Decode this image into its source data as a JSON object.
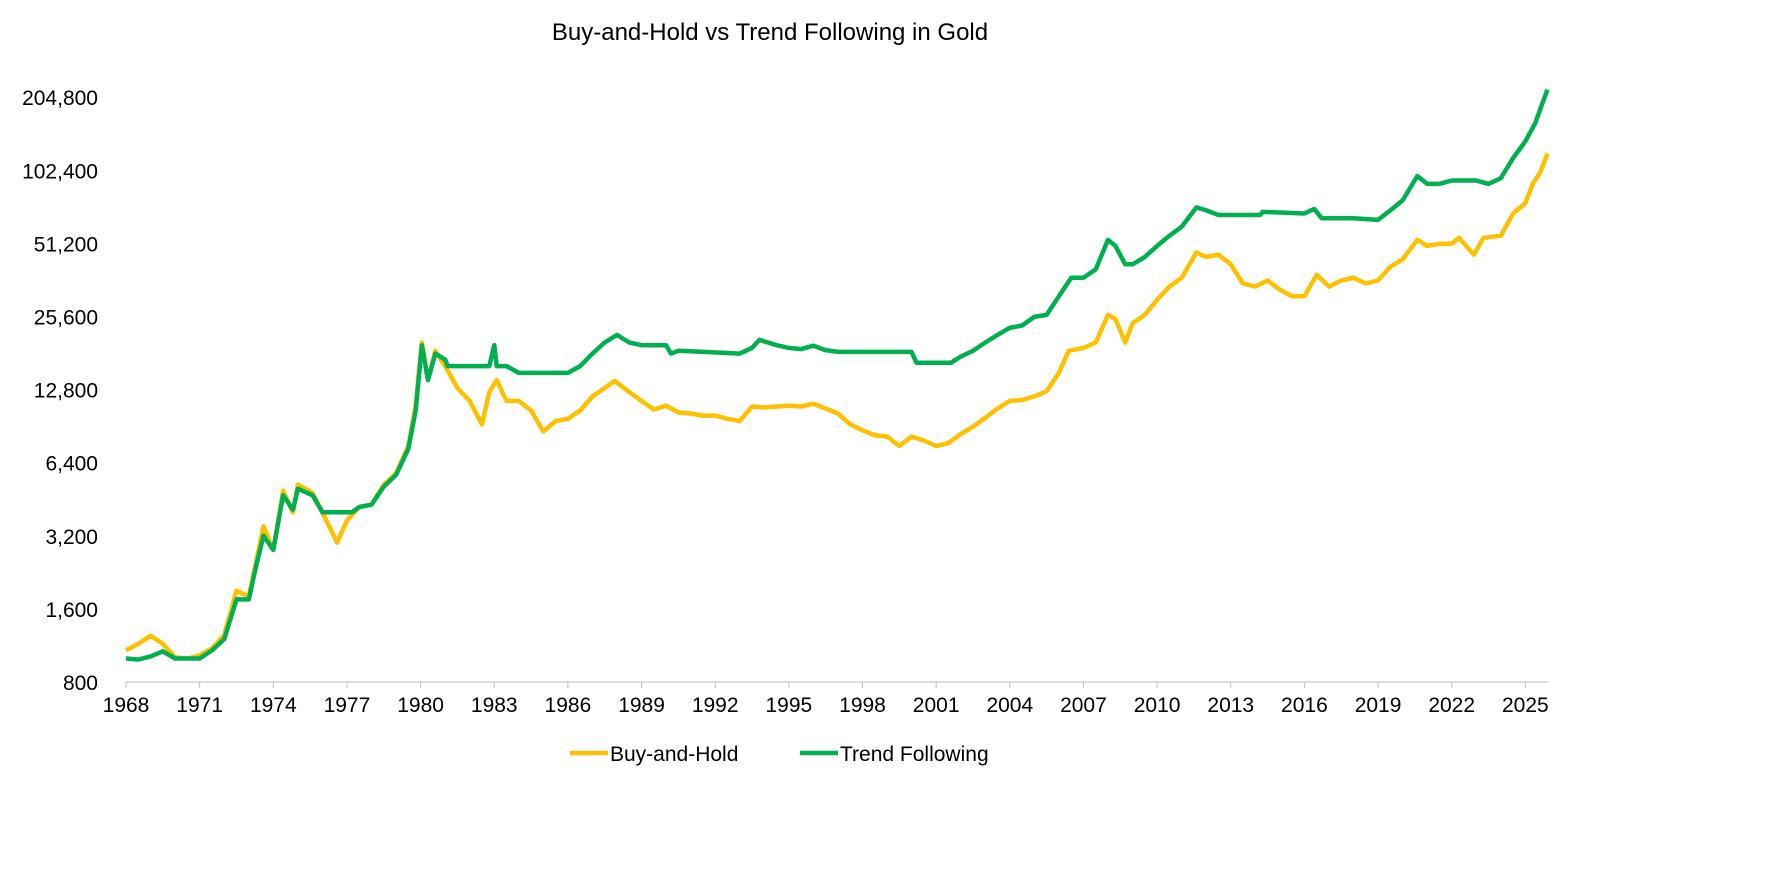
{
  "chart_data": {
    "type": "line",
    "title": "Buy-and-Hold vs Trend Following in Gold",
    "xlabel": "",
    "ylabel": "",
    "y_scale": "log2",
    "ylim": [
      800,
      204800
    ],
    "xlim": [
      1968,
      2025.9
    ],
    "y_ticks": [
      800,
      1600,
      3200,
      6400,
      12800,
      25600,
      51200,
      102400,
      204800
    ],
    "y_tick_labels": [
      "800",
      "1,600",
      "3,200",
      "6,400",
      "12,800",
      "25,600",
      "51,200",
      "102,400",
      "204,800"
    ],
    "x_ticks": [
      1968,
      1971,
      1974,
      1977,
      1980,
      1983,
      1986,
      1989,
      1992,
      1995,
      1998,
      2001,
      2004,
      2007,
      2010,
      2013,
      2016,
      2019,
      2022,
      2025
    ],
    "x_tick_labels": [
      "1968",
      "1971",
      "1974",
      "1977",
      "1980",
      "1983",
      "1986",
      "1989",
      "1992",
      "1995",
      "1998",
      "2001",
      "2004",
      "2007",
      "2010",
      "2013",
      "2016",
      "2019",
      "2022",
      "2025"
    ],
    "grid": false,
    "legend_position": "bottom",
    "series": [
      {
        "name": "Buy-and-Hold",
        "color": "#FFC000",
        "points": [
          [
            1968.0,
            1080
          ],
          [
            1968.5,
            1150
          ],
          [
            1969.0,
            1240
          ],
          [
            1969.5,
            1150
          ],
          [
            1970.0,
            1010
          ],
          [
            1970.5,
            1000
          ],
          [
            1971.0,
            1030
          ],
          [
            1971.5,
            1100
          ],
          [
            1972.0,
            1250
          ],
          [
            1972.5,
            1900
          ],
          [
            1973.0,
            1800
          ],
          [
            1973.3,
            2500
          ],
          [
            1973.6,
            3500
          ],
          [
            1974.0,
            2800
          ],
          [
            1974.4,
            4900
          ],
          [
            1974.8,
            4000
          ],
          [
            1975.0,
            5200
          ],
          [
            1975.6,
            4800
          ],
          [
            1976.0,
            4000
          ],
          [
            1976.6,
            3000
          ],
          [
            1977.0,
            3700
          ],
          [
            1977.5,
            4200
          ],
          [
            1978.0,
            4300
          ],
          [
            1978.5,
            5200
          ],
          [
            1979.0,
            5800
          ],
          [
            1979.5,
            7500
          ],
          [
            1979.8,
            11000
          ],
          [
            1980.05,
            20000
          ],
          [
            1980.3,
            14000
          ],
          [
            1980.6,
            18500
          ],
          [
            1981.0,
            16000
          ],
          [
            1981.5,
            13000
          ],
          [
            1982.0,
            11500
          ],
          [
            1982.5,
            9200
          ],
          [
            1982.8,
            12500
          ],
          [
            1983.1,
            14000
          ],
          [
            1983.5,
            11500
          ],
          [
            1984.0,
            11500
          ],
          [
            1984.5,
            10500
          ],
          [
            1985.0,
            8600
          ],
          [
            1985.5,
            9500
          ],
          [
            1986.0,
            9700
          ],
          [
            1986.5,
            10500
          ],
          [
            1987.0,
            12000
          ],
          [
            1987.5,
            13000
          ],
          [
            1987.9,
            13900
          ],
          [
            1988.5,
            12500
          ],
          [
            1989.0,
            11500
          ],
          [
            1989.5,
            10600
          ],
          [
            1990.0,
            11000
          ],
          [
            1990.5,
            10300
          ],
          [
            1991.0,
            10200
          ],
          [
            1991.5,
            10000
          ],
          [
            1992.0,
            10000
          ],
          [
            1992.5,
            9700
          ],
          [
            1993.0,
            9500
          ],
          [
            1993.5,
            10900
          ],
          [
            1994.0,
            10800
          ],
          [
            1994.5,
            10900
          ],
          [
            1995.0,
            11000
          ],
          [
            1995.5,
            10900
          ],
          [
            1996.0,
            11200
          ],
          [
            1996.5,
            10700
          ],
          [
            1997.0,
            10200
          ],
          [
            1997.5,
            9200
          ],
          [
            1998.0,
            8700
          ],
          [
            1998.5,
            8300
          ],
          [
            1999.0,
            8200
          ],
          [
            1999.5,
            7500
          ],
          [
            2000.0,
            8200
          ],
          [
            2000.5,
            7900
          ],
          [
            2001.0,
            7500
          ],
          [
            2001.5,
            7700
          ],
          [
            2002.0,
            8400
          ],
          [
            2002.5,
            9000
          ],
          [
            2003.0,
            9800
          ],
          [
            2003.5,
            10700
          ],
          [
            2004.0,
            11500
          ],
          [
            2004.5,
            11600
          ],
          [
            2005.0,
            12000
          ],
          [
            2005.5,
            12600
          ],
          [
            2006.0,
            15000
          ],
          [
            2006.4,
            18500
          ],
          [
            2007.0,
            19000
          ],
          [
            2007.5,
            20000
          ],
          [
            2008.0,
            26000
          ],
          [
            2008.3,
            25000
          ],
          [
            2008.7,
            20000
          ],
          [
            2009.0,
            24000
          ],
          [
            2009.5,
            26000
          ],
          [
            2010.0,
            30000
          ],
          [
            2010.5,
            34000
          ],
          [
            2011.0,
            37000
          ],
          [
            2011.6,
            47000
          ],
          [
            2012.0,
            45000
          ],
          [
            2012.5,
            46000
          ],
          [
            2013.0,
            42000
          ],
          [
            2013.5,
            35000
          ],
          [
            2014.0,
            34000
          ],
          [
            2014.5,
            36000
          ],
          [
            2015.0,
            33000
          ],
          [
            2015.5,
            31000
          ],
          [
            2016.0,
            31000
          ],
          [
            2016.5,
            38000
          ],
          [
            2017.0,
            34000
          ],
          [
            2017.5,
            36000
          ],
          [
            2018.0,
            37000
          ],
          [
            2018.5,
            35000
          ],
          [
            2019.0,
            36000
          ],
          [
            2019.5,
            41000
          ],
          [
            2020.0,
            44000
          ],
          [
            2020.6,
            53000
          ],
          [
            2021.0,
            50000
          ],
          [
            2021.5,
            51000
          ],
          [
            2022.0,
            51000
          ],
          [
            2022.3,
            54000
          ],
          [
            2022.9,
            46000
          ],
          [
            2023.3,
            54000
          ],
          [
            2024.0,
            55000
          ],
          [
            2024.5,
            68000
          ],
          [
            2025.0,
            75000
          ],
          [
            2025.3,
            90000
          ],
          [
            2025.6,
            100000
          ],
          [
            2025.9,
            120000
          ]
        ]
      },
      {
        "name": "Trend Following",
        "color": "#00B050",
        "points": [
          [
            1968.0,
            1000
          ],
          [
            1968.5,
            990
          ],
          [
            1969.0,
            1020
          ],
          [
            1969.5,
            1070
          ],
          [
            1970.0,
            1000
          ],
          [
            1970.5,
            1000
          ],
          [
            1971.0,
            1000
          ],
          [
            1971.5,
            1080
          ],
          [
            1972.0,
            1200
          ],
          [
            1972.5,
            1750
          ],
          [
            1973.0,
            1750
          ],
          [
            1973.3,
            2400
          ],
          [
            1973.6,
            3200
          ],
          [
            1974.0,
            2800
          ],
          [
            1974.4,
            4700
          ],
          [
            1974.8,
            4100
          ],
          [
            1975.0,
            5000
          ],
          [
            1975.6,
            4700
          ],
          [
            1976.0,
            4000
          ],
          [
            1977.2,
            4000
          ],
          [
            1977.5,
            4200
          ],
          [
            1978.0,
            4300
          ],
          [
            1978.5,
            5100
          ],
          [
            1979.0,
            5700
          ],
          [
            1979.5,
            7300
          ],
          [
            1979.8,
            10500
          ],
          [
            1980.05,
            19500
          ],
          [
            1980.3,
            14000
          ],
          [
            1980.6,
            18000
          ],
          [
            1981.0,
            17000
          ],
          [
            1981.1,
            16000
          ],
          [
            1982.8,
            16000
          ],
          [
            1983.0,
            19500
          ],
          [
            1983.1,
            16000
          ],
          [
            1983.5,
            16000
          ],
          [
            1984.0,
            15000
          ],
          [
            1986.0,
            15000
          ],
          [
            1986.5,
            16000
          ],
          [
            1987.0,
            18000
          ],
          [
            1987.5,
            20000
          ],
          [
            1988.0,
            21500
          ],
          [
            1988.5,
            20000
          ],
          [
            1989.0,
            19500
          ],
          [
            1990.0,
            19500
          ],
          [
            1990.2,
            18000
          ],
          [
            1990.5,
            18500
          ],
          [
            1991.0,
            18400
          ],
          [
            1993.0,
            18000
          ],
          [
            1993.5,
            19000
          ],
          [
            1993.8,
            20500
          ],
          [
            1994.5,
            19500
          ],
          [
            1995.0,
            19000
          ],
          [
            1995.5,
            18800
          ],
          [
            1996.0,
            19400
          ],
          [
            1996.5,
            18600
          ],
          [
            1997.0,
            18300
          ],
          [
            2000.0,
            18300
          ],
          [
            2000.2,
            16500
          ],
          [
            2001.6,
            16500
          ],
          [
            2002.0,
            17500
          ],
          [
            2002.5,
            18500
          ],
          [
            2003.0,
            20000
          ],
          [
            2003.5,
            21500
          ],
          [
            2004.0,
            23000
          ],
          [
            2004.5,
            23500
          ],
          [
            2005.0,
            25500
          ],
          [
            2005.5,
            26000
          ],
          [
            2006.0,
            31000
          ],
          [
            2006.5,
            37000
          ],
          [
            2007.0,
            37000
          ],
          [
            2007.5,
            40000
          ],
          [
            2008.0,
            53000
          ],
          [
            2008.3,
            50000
          ],
          [
            2008.7,
            42000
          ],
          [
            2009.0,
            42000
          ],
          [
            2009.5,
            45000
          ],
          [
            2010.0,
            50000
          ],
          [
            2010.5,
            55000
          ],
          [
            2011.0,
            60000
          ],
          [
            2011.6,
            72000
          ],
          [
            2012.0,
            70000
          ],
          [
            2012.5,
            67000
          ],
          [
            2013.0,
            67000
          ],
          [
            2014.2,
            67000
          ],
          [
            2014.3,
            69000
          ],
          [
            2016.0,
            68000
          ],
          [
            2016.4,
            71000
          ],
          [
            2016.7,
            65000
          ],
          [
            2018.0,
            65000
          ],
          [
            2019.0,
            64000
          ],
          [
            2019.5,
            70000
          ],
          [
            2020.0,
            77000
          ],
          [
            2020.6,
            97000
          ],
          [
            2021.0,
            90000
          ],
          [
            2021.5,
            90000
          ],
          [
            2022.0,
            93000
          ],
          [
            2023.0,
            93000
          ],
          [
            2023.5,
            90000
          ],
          [
            2024.0,
            95000
          ],
          [
            2024.5,
            115000
          ],
          [
            2025.0,
            135000
          ],
          [
            2025.4,
            160000
          ],
          [
            2025.9,
            220000
          ]
        ]
      }
    ]
  }
}
